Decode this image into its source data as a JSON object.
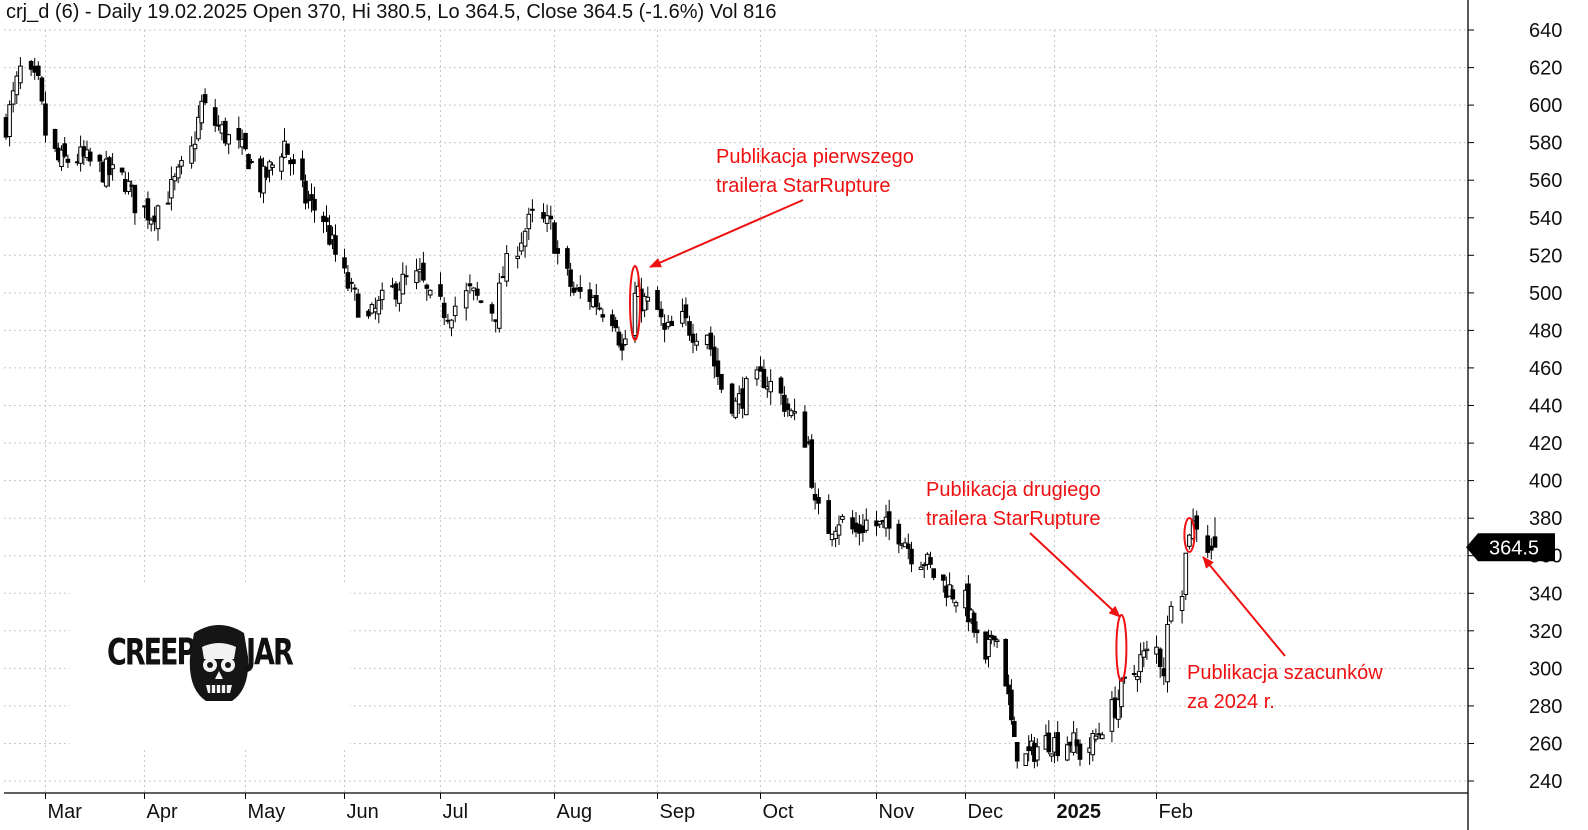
{
  "header": {
    "text": "crj_d (6) - Daily 19.02.2025 Open 370, Hi 380.5, Lo 364.5, Close 364.5 (-1.6%) Vol 816"
  },
  "colors": {
    "candle": "#000000",
    "grid": "#c8c8c8",
    "annotation": "#ee1111",
    "price_tag_bg": "#000000",
    "price_tag_text": "#ffffff"
  },
  "logo": {
    "left": "CREEPY",
    "right": "JAR",
    "icon": "skull-jar-icon"
  },
  "annotations": [
    {
      "lines": [
        "Publikacja pierwszego",
        "trailera StarRupture"
      ],
      "target_date": "2024-08-26"
    },
    {
      "lines": [
        "Publikacja drugiego",
        "trailera StarRupture"
      ],
      "target_date": "2025-01-23"
    },
    {
      "lines": [
        "Publikacja szacunków",
        "za 2024 r."
      ],
      "target_date": "2025-02-12"
    }
  ],
  "chart_data": {
    "type": "candlestick",
    "series_name": "crj_d (6)",
    "interval": "Daily",
    "ylim": [
      230,
      650
    ],
    "y_ticks": [
      240,
      260,
      280,
      300,
      320,
      340,
      360,
      380,
      400,
      420,
      440,
      460,
      480,
      500,
      520,
      540,
      560,
      580,
      600,
      620,
      640
    ],
    "x_labels": [
      {
        "label": "Mar",
        "date": "2024-03-01"
      },
      {
        "label": "Apr",
        "date": "2024-04-01"
      },
      {
        "label": "May",
        "date": "2024-05-01"
      },
      {
        "label": "Jun",
        "date": "2024-06-03"
      },
      {
        "label": "Jul",
        "date": "2024-07-01"
      },
      {
        "label": "Aug",
        "date": "2024-08-01"
      },
      {
        "label": "Sep",
        "date": "2024-09-02"
      },
      {
        "label": "Oct",
        "date": "2024-10-01"
      },
      {
        "label": "Nov",
        "date": "2024-11-04"
      },
      {
        "label": "Dec",
        "date": "2024-12-02"
      },
      {
        "label": "2025",
        "date": "2025-01-02",
        "bold": true
      },
      {
        "label": "Feb",
        "date": "2025-02-03"
      }
    ],
    "grid": true,
    "last_price": "364.5",
    "last_bar": {
      "date": "2025-02-19",
      "open": 370,
      "high": 380.5,
      "low": 364.5,
      "close": 364.5,
      "volume": 816,
      "change_pct": -1.6
    },
    "close_path": [
      [
        "2024-02-19",
        590
      ],
      [
        "2024-02-23",
        618
      ],
      [
        "2024-02-28",
        610
      ],
      [
        "2024-03-01",
        585
      ],
      [
        "2024-03-05",
        570
      ],
      [
        "2024-03-12",
        572
      ],
      [
        "2024-03-19",
        565
      ],
      [
        "2024-03-26",
        560
      ],
      [
        "2024-03-29",
        548
      ],
      [
        "2024-04-03",
        542
      ],
      [
        "2024-04-09",
        555
      ],
      [
        "2024-04-15",
        575
      ],
      [
        "2024-04-18",
        600
      ],
      [
        "2024-04-22",
        590
      ],
      [
        "2024-04-26",
        582
      ],
      [
        "2024-05-02",
        572
      ],
      [
        "2024-05-06",
        558
      ],
      [
        "2024-05-10",
        568
      ],
      [
        "2024-05-14",
        580
      ],
      [
        "2024-05-17",
        565
      ],
      [
        "2024-05-21",
        550
      ],
      [
        "2024-05-27",
        540
      ],
      [
        "2024-05-31",
        520
      ],
      [
        "2024-06-05",
        500
      ],
      [
        "2024-06-10",
        485
      ],
      [
        "2024-06-14",
        495
      ],
      [
        "2024-06-19",
        505
      ],
      [
        "2024-06-25",
        508
      ],
      [
        "2024-06-28",
        495
      ],
      [
        "2024-07-03",
        490
      ],
      [
        "2024-07-09",
        500
      ],
      [
        "2024-07-12",
        495
      ],
      [
        "2024-07-16",
        490
      ],
      [
        "2024-07-18",
        510
      ],
      [
        "2024-07-23",
        530
      ],
      [
        "2024-07-26",
        540
      ],
      [
        "2024-07-31",
        535
      ],
      [
        "2024-08-02",
        520
      ],
      [
        "2024-08-07",
        500
      ],
      [
        "2024-08-12",
        498
      ],
      [
        "2024-08-16",
        492
      ],
      [
        "2024-08-20",
        487
      ],
      [
        "2024-08-22",
        468
      ],
      [
        "2024-08-26",
        498
      ],
      [
        "2024-08-29",
        495
      ],
      [
        "2024-09-02",
        490
      ],
      [
        "2024-09-04",
        478
      ],
      [
        "2024-09-09",
        485
      ],
      [
        "2024-09-12",
        480
      ],
      [
        "2024-09-16",
        480
      ],
      [
        "2024-09-18",
        462
      ],
      [
        "2024-09-20",
        450
      ],
      [
        "2024-09-24",
        440
      ],
      [
        "2024-09-27",
        448
      ],
      [
        "2024-10-02",
        455
      ],
      [
        "2024-10-07",
        445
      ],
      [
        "2024-10-10",
        435
      ],
      [
        "2024-10-15",
        420
      ],
      [
        "2024-10-17",
        385
      ],
      [
        "2024-10-21",
        375
      ],
      [
        "2024-10-24",
        380
      ],
      [
        "2024-10-29",
        372
      ],
      [
        "2024-11-01",
        378
      ],
      [
        "2024-11-06",
        375
      ],
      [
        "2024-11-12",
        372
      ],
      [
        "2024-11-15",
        362
      ],
      [
        "2024-11-19",
        358
      ],
      [
        "2024-11-22",
        350
      ],
      [
        "2024-11-27",
        342
      ],
      [
        "2024-12-02",
        335
      ],
      [
        "2024-12-05",
        320
      ],
      [
        "2024-12-09",
        300
      ],
      [
        "2024-12-11",
        318
      ],
      [
        "2024-12-12",
        322
      ],
      [
        "2024-12-16",
        295
      ],
      [
        "2024-12-19",
        258
      ],
      [
        "2024-12-23",
        252
      ],
      [
        "2024-12-27",
        258
      ],
      [
        "2024-12-31",
        262
      ],
      [
        "2025-01-03",
        260
      ],
      [
        "2025-01-07",
        262
      ],
      [
        "2025-01-10",
        255
      ],
      [
        "2025-01-14",
        260
      ],
      [
        "2025-01-17",
        270
      ],
      [
        "2025-01-21",
        280
      ],
      [
        "2025-01-23",
        288
      ],
      [
        "2025-01-27",
        298
      ],
      [
        "2025-01-29",
        305
      ],
      [
        "2025-02-03",
        310
      ],
      [
        "2025-02-05",
        300
      ],
      [
        "2025-02-07",
        340
      ],
      [
        "2025-02-10",
        345
      ],
      [
        "2025-02-12",
        375
      ],
      [
        "2025-02-14",
        378
      ],
      [
        "2025-02-17",
        365
      ],
      [
        "2025-02-19",
        364.5
      ]
    ]
  }
}
